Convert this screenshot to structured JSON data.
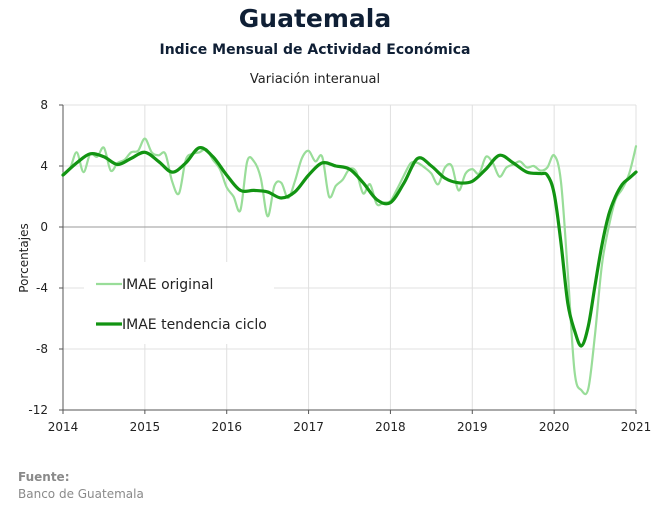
{
  "header": {
    "title": "Guatemala",
    "subtitle": "Indice Mensual de  Actividad Económica",
    "subtitle2": "Variación interanual"
  },
  "footer": {
    "source_label": "Fuente:",
    "source_text": "Banco de Guatemala"
  },
  "colors": {
    "original": "#99dd99",
    "trend": "#129412",
    "grid": "#e0e0e0",
    "axis": "#555555"
  },
  "chart_data": {
    "type": "line",
    "ylabel": "Porcentajes",
    "xlabel": "",
    "ylim": [
      -12,
      8
    ],
    "yticks": [
      8,
      4,
      0,
      -4,
      -8,
      -12
    ],
    "xlim": [
      2014,
      2021
    ],
    "xticks": [
      "2014",
      "2015",
      "2016",
      "2017",
      "2018",
      "2019",
      "2020",
      "2021"
    ],
    "grid": true,
    "legend_position": "left-middle",
    "series": [
      {
        "name": "IMAE original",
        "x": [
          2014.0,
          2014.083,
          2014.167,
          2014.25,
          2014.333,
          2014.417,
          2014.5,
          2014.583,
          2014.667,
          2014.75,
          2014.833,
          2014.917,
          2015.0,
          2015.083,
          2015.167,
          2015.25,
          2015.333,
          2015.417,
          2015.5,
          2015.583,
          2015.667,
          2015.75,
          2015.833,
          2015.917,
          2016.0,
          2016.083,
          2016.167,
          2016.25,
          2016.333,
          2016.417,
          2016.5,
          2016.583,
          2016.667,
          2016.75,
          2016.833,
          2016.917,
          2017.0,
          2017.083,
          2017.167,
          2017.25,
          2017.333,
          2017.417,
          2017.5,
          2017.583,
          2017.667,
          2017.75,
          2017.833,
          2017.917,
          2018.0,
          2018.083,
          2018.167,
          2018.25,
          2018.333,
          2018.417,
          2018.5,
          2018.583,
          2018.667,
          2018.75,
          2018.833,
          2018.917,
          2019.0,
          2019.083,
          2019.167,
          2019.25,
          2019.333,
          2019.417,
          2019.5,
          2019.583,
          2019.667,
          2019.75,
          2019.833,
          2019.917,
          2020.0,
          2020.083,
          2020.167,
          2020.25,
          2020.333,
          2020.417,
          2020.5,
          2020.583,
          2020.667,
          2020.75,
          2020.833,
          2020.917,
          2021.0
        ],
        "values": [
          3.5,
          3.8,
          4.9,
          3.6,
          4.8,
          4.6,
          5.2,
          3.7,
          4.2,
          4.4,
          4.9,
          5.0,
          5.8,
          4.9,
          4.7,
          4.8,
          3.0,
          2.2,
          4.4,
          4.8,
          4.9,
          5.1,
          4.4,
          3.8,
          2.6,
          2.0,
          1.1,
          4.3,
          4.3,
          3.2,
          0.7,
          2.7,
          2.9,
          1.9,
          3.0,
          4.5,
          5.0,
          4.3,
          4.6,
          2.0,
          2.7,
          3.1,
          3.8,
          3.6,
          2.2,
          2.8,
          1.5,
          1.6,
          1.7,
          2.5,
          3.4,
          4.2,
          4.2,
          3.9,
          3.5,
          2.8,
          3.9,
          4.0,
          2.4,
          3.5,
          3.8,
          3.5,
          4.6,
          4.2,
          3.3,
          3.9,
          4.1,
          4.3,
          3.9,
          4.0,
          3.7,
          3.9,
          4.7,
          3.0,
          -3.0,
          -9.5,
          -10.7,
          -10.6,
          -7.0,
          -2.5,
          0.0,
          1.8,
          2.5,
          3.5,
          5.3
        ]
      },
      {
        "name": "IMAE tendencia ciclo",
        "x": [
          2014.0,
          2014.167,
          2014.333,
          2014.5,
          2014.667,
          2014.833,
          2015.0,
          2015.167,
          2015.333,
          2015.5,
          2015.667,
          2015.833,
          2016.0,
          2016.167,
          2016.333,
          2016.5,
          2016.667,
          2016.833,
          2017.0,
          2017.167,
          2017.333,
          2017.5,
          2017.667,
          2017.833,
          2018.0,
          2018.167,
          2018.333,
          2018.5,
          2018.667,
          2018.833,
          2019.0,
          2019.167,
          2019.333,
          2019.5,
          2019.667,
          2019.833,
          2019.917,
          2020.0,
          2020.083,
          2020.167,
          2020.25,
          2020.333,
          2020.417,
          2020.5,
          2020.583,
          2020.667,
          2020.75,
          2020.833,
          2020.917,
          2021.0
        ],
        "values": [
          3.4,
          4.2,
          4.8,
          4.6,
          4.1,
          4.5,
          4.9,
          4.3,
          3.6,
          4.2,
          5.2,
          4.6,
          3.4,
          2.4,
          2.4,
          2.3,
          1.9,
          2.3,
          3.4,
          4.2,
          4.0,
          3.8,
          2.9,
          1.8,
          1.6,
          2.9,
          4.5,
          4.0,
          3.2,
          2.9,
          3.0,
          3.8,
          4.7,
          4.2,
          3.6,
          3.5,
          3.4,
          2.2,
          -1.0,
          -5.0,
          -6.8,
          -7.8,
          -6.5,
          -3.8,
          -1.2,
          0.8,
          2.0,
          2.8,
          3.2,
          3.6
        ]
      }
    ]
  }
}
